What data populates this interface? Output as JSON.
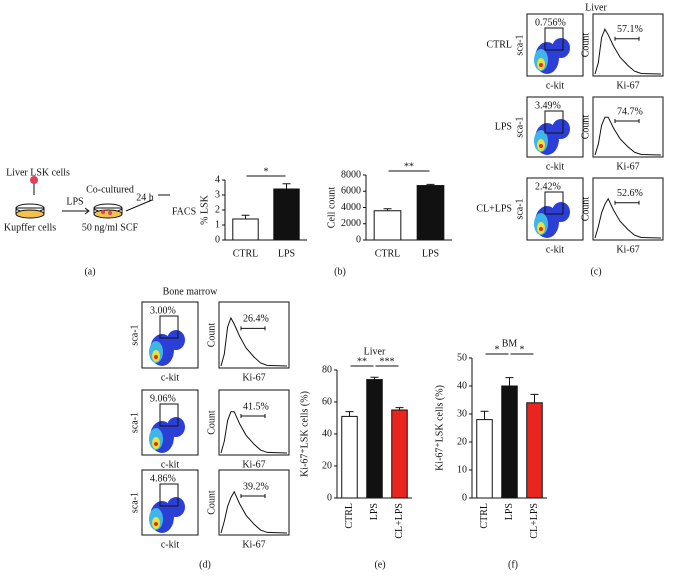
{
  "schematic": {
    "cells": "Liver LSK cells",
    "kupffer": "Kupffer cells",
    "lps": "LPS",
    "cocultured": "Co-cultured",
    "scf": "50 ng/ml SCF",
    "time": "24 h",
    "facs": "FACS",
    "panel_label": "(a)"
  },
  "chart_data": [
    {
      "type": "bar",
      "y_label": "% LSK",
      "categories": [
        "CTRL",
        "LPS"
      ],
      "values": [
        1.4,
        3.4
      ],
      "errors": [
        0.25,
        0.35
      ],
      "colors": [
        "#ffffff",
        "#111111"
      ],
      "ylim": [
        0,
        4
      ],
      "yticks": [
        0,
        1,
        2,
        3,
        4
      ],
      "annotations": [
        "*"
      ],
      "panel_label": "(b)"
    },
    {
      "type": "bar",
      "y_label": "Cell count",
      "categories": [
        "CTRL",
        "LPS"
      ],
      "values": [
        3600,
        6700
      ],
      "errors": [
        250,
        150
      ],
      "colors": [
        "#ffffff",
        "#111111"
      ],
      "ylim": [
        0,
        8000
      ],
      "yticks": [
        0,
        2000,
        4000,
        6000,
        8000
      ],
      "annotations": [
        "**"
      ]
    },
    {
      "type": "bar",
      "title": "Liver",
      "y_label": "Ki-67⁺LSK cells (%)",
      "categories": [
        "CTRL",
        "LPS",
        "CL+LPS"
      ],
      "values": [
        51,
        74,
        55
      ],
      "errors": [
        3,
        1.5,
        1.5
      ],
      "colors": [
        "#ffffff",
        "#111111",
        "#e8261f"
      ],
      "ylim": [
        0,
        80
      ],
      "yticks": [
        0,
        20,
        40,
        60,
        80
      ],
      "annotations": [
        "**",
        "***"
      ],
      "panel_label": "(e)"
    },
    {
      "type": "bar",
      "title": "BM",
      "y_label": "Ki-67⁺LSK cells (%)",
      "categories": [
        "CTRL",
        "LPS",
        "CL+LPS"
      ],
      "values": [
        28,
        40,
        34
      ],
      "errors": [
        3,
        3,
        3
      ],
      "colors": [
        "#ffffff",
        "#111111",
        "#e8261f"
      ],
      "ylim": [
        0,
        50
      ],
      "yticks": [
        0,
        10,
        20,
        30,
        40,
        50
      ],
      "annotations": [
        "*",
        "*"
      ],
      "panel_label": "(f)"
    }
  ],
  "liver_facs": {
    "title": "Liver",
    "x_label": "c-kit",
    "y_label": "sca-1",
    "hist_x_label": "Ki-67",
    "hist_y_label": "Count",
    "panel_label": "(c)",
    "rows": [
      {
        "label": "CTRL",
        "gate": "0.756%",
        "ki67": "57.1%"
      },
      {
        "label": "LPS",
        "gate": "3.49%",
        "ki67": "74.7%"
      },
      {
        "label": "CL+LPS",
        "gate": "2.42%",
        "ki67": "52.6%"
      }
    ]
  },
  "bm_facs": {
    "title": "Bone marrow",
    "x_label": "c-kit",
    "y_label": "sca-1",
    "hist_x_label": "Ki-67",
    "hist_y_label": "Count",
    "panel_label": "(d)",
    "rows": [
      {
        "gate": "3.00%",
        "ki67": "26.4%"
      },
      {
        "gate": "9.06%",
        "ki67": "41.5%"
      },
      {
        "gate": "4.86%",
        "ki67": "39.2%"
      }
    ]
  }
}
